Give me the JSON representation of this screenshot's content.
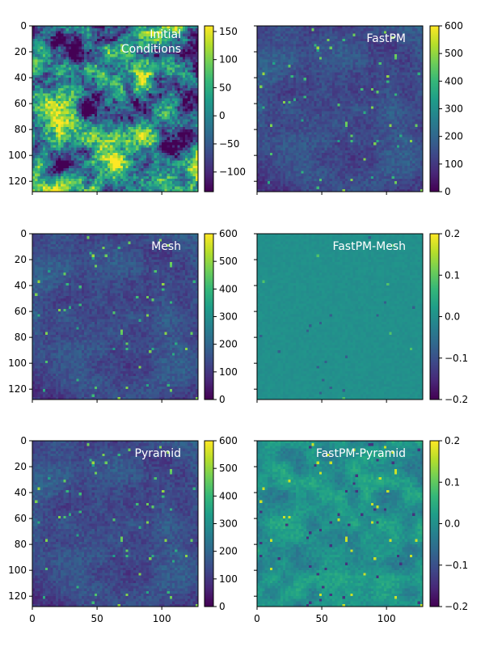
{
  "chart_data": [
    {
      "type": "heatmap",
      "title": "Initial\nConditions",
      "label_lines": [
        "Initial",
        "Conditions"
      ],
      "field": "ic",
      "colorbar": {
        "range": [
          -135,
          160
        ],
        "ticks": [
          -100,
          -50,
          0,
          50,
          100,
          150
        ],
        "tick_labels": [
          "−100",
          "−50",
          "0",
          "50",
          "100",
          "150"
        ]
      },
      "ylim": [
        128,
        0
      ],
      "yticks": [
        0,
        20,
        40,
        60,
        80,
        100,
        120
      ],
      "ytick_labels": [
        "0",
        "20",
        "40",
        "60",
        "80",
        "100",
        "120"
      ],
      "show_xtick_labels": false
    },
    {
      "type": "heatmap",
      "title": "FastPM",
      "label_lines": [
        "FastPM"
      ],
      "field": "density",
      "colorbar": {
        "range": [
          0,
          600
        ],
        "ticks": [
          0,
          100,
          200,
          300,
          400,
          500,
          600
        ],
        "tick_labels": [
          "0",
          "100",
          "200",
          "300",
          "400",
          "500",
          "600"
        ]
      },
      "ylim": [
        128,
        0
      ],
      "yticks": [
        0,
        20,
        40,
        60,
        80,
        100,
        120
      ],
      "show_ytick_labels": false,
      "show_xtick_labels": false
    },
    {
      "type": "heatmap",
      "title": "Mesh",
      "label_lines": [
        "Mesh"
      ],
      "field": "density",
      "colorbar": {
        "range": [
          0,
          600
        ],
        "ticks": [
          0,
          100,
          200,
          300,
          400,
          500,
          600
        ],
        "tick_labels": [
          "0",
          "100",
          "200",
          "300",
          "400",
          "500",
          "600"
        ]
      },
      "ylim": [
        128,
        0
      ],
      "yticks": [
        0,
        20,
        40,
        60,
        80,
        100,
        120
      ],
      "ytick_labels": [
        "0",
        "20",
        "40",
        "60",
        "80",
        "100",
        "120"
      ],
      "show_xtick_labels": false
    },
    {
      "type": "heatmap",
      "title": "FastPM-Mesh",
      "label_lines": [
        "FastPM-Mesh"
      ],
      "field": "diff_small",
      "colorbar": {
        "range": [
          -0.2,
          0.2
        ],
        "ticks": [
          -0.2,
          -0.1,
          0.0,
          0.1,
          0.2
        ],
        "tick_labels": [
          "−0.2",
          "−0.1",
          "0.0",
          "0.1",
          "0.2"
        ]
      },
      "ylim": [
        128,
        0
      ],
      "yticks": [
        0,
        20,
        40,
        60,
        80,
        100,
        120
      ],
      "show_ytick_labels": false,
      "show_xtick_labels": false
    },
    {
      "type": "heatmap",
      "title": "Pyramid",
      "label_lines": [
        "Pyramid"
      ],
      "field": "density",
      "colorbar": {
        "range": [
          0,
          600
        ],
        "ticks": [
          0,
          100,
          200,
          300,
          400,
          500,
          600
        ],
        "tick_labels": [
          "0",
          "100",
          "200",
          "300",
          "400",
          "500",
          "600"
        ]
      },
      "ylim": [
        128,
        0
      ],
      "yticks": [
        0,
        20,
        40,
        60,
        80,
        100,
        120
      ],
      "ytick_labels": [
        "0",
        "20",
        "40",
        "60",
        "80",
        "100",
        "120"
      ],
      "xlim": [
        0,
        128
      ],
      "xticks": [
        0,
        50,
        100
      ],
      "xtick_labels": [
        "0",
        "50",
        "100"
      ]
    },
    {
      "type": "heatmap",
      "title": "FastPM-Pyramid",
      "label_lines": [
        "FastPM-Pyramid"
      ],
      "field": "diff_large",
      "colorbar": {
        "range": [
          -0.2,
          0.2
        ],
        "ticks": [
          -0.2,
          -0.1,
          0.0,
          0.1,
          0.2
        ],
        "tick_labels": [
          "−0.2",
          "−0.1",
          "0.0",
          "0.1",
          "0.2"
        ]
      },
      "ylim": [
        128,
        0
      ],
      "yticks": [
        0,
        20,
        40,
        60,
        80,
        100,
        120
      ],
      "show_ytick_labels": false,
      "xlim": [
        0,
        128
      ],
      "xticks": [
        0,
        50,
        100
      ],
      "xtick_labels": [
        "0",
        "50",
        "100"
      ]
    }
  ],
  "colors": {
    "colormap": [
      "#440154",
      "#482878",
      "#3e4989",
      "#31688e",
      "#26828e",
      "#1f9e89",
      "#35b779",
      "#6ece58",
      "#b5de2b",
      "#fde725"
    ],
    "label_text": "#ffffff",
    "axis": "#000000"
  }
}
